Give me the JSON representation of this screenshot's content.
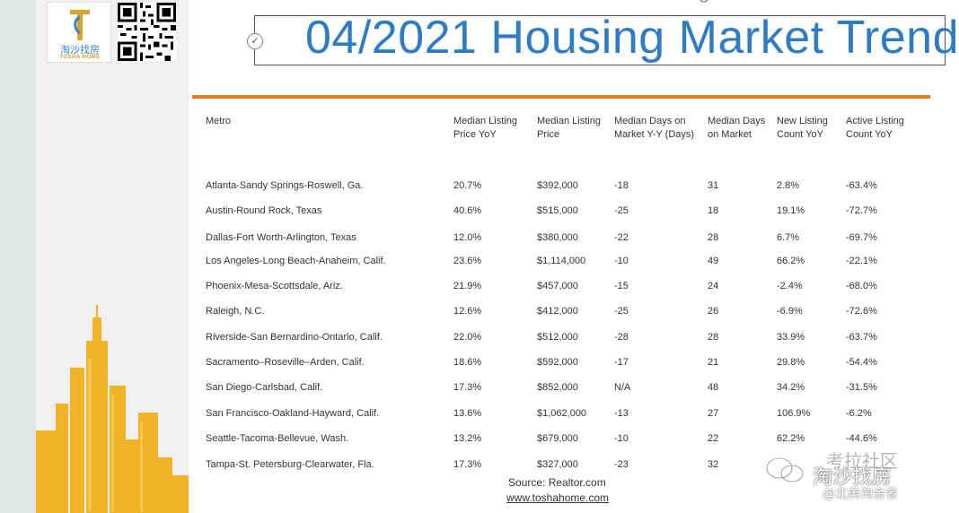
{
  "brand": {
    "logo_cn": "淘沙找房",
    "logo_en": "TOSHA HOME"
  },
  "title": "04/2021 Housing Market Trend",
  "table": {
    "headers": [
      "Metro",
      "Median Listing Price YoY",
      "Median Listing Price",
      "Median Days on Market Y-Y (Days)",
      "Median Days on Market",
      "New Listing Count YoY",
      "Active Listing Count YoY"
    ],
    "rows": [
      [
        "Atlanta-Sandy Springs-Roswell, Ga.",
        "20.7%",
        "$392,000",
        "-18",
        "31",
        "2.8%",
        "-63.4%"
      ],
      [
        "Austin-Round Rock, Texas",
        "40.6%",
        "$515,000",
        "-25",
        "18",
        "19.1%",
        "-72.7%"
      ],
      [
        "Dallas-Fort Worth-Arlington, Texas",
        "12.0%",
        "$380,000",
        "-22",
        "28",
        "6.7%",
        "-69.7%"
      ],
      [
        "Los Angeles-Long Beach-Anaheim, Calif.",
        "23.6%",
        "$1,114,000",
        "-10",
        "49",
        "66.2%",
        "-22.1%"
      ],
      [
        "Phoenix-Mesa-Scottsdale, Ariz.",
        "21.9%",
        "$457,000",
        "-15",
        "24",
        "-2.4%",
        "-68.0%"
      ],
      [
        "Raleigh, N.C.",
        "12.6%",
        "$412,000",
        "-25",
        "26",
        "-6.9%",
        "-72.6%"
      ],
      [
        "Riverside-San Bernardino-Ontario, Calif.",
        "22.0%",
        "$512,000",
        "-28",
        "28",
        "33.9%",
        "-63.7%"
      ],
      [
        "Sacramento–Roseville–Arden, Calif.",
        "18.6%",
        "$592,000",
        "-17",
        "21",
        "29.8%",
        "-54.4%"
      ],
      [
        "San Diego-Carlsbad, Calif.",
        "17.3%",
        "$852,000",
        "N/A",
        "48",
        "34.2%",
        "-31.5%"
      ],
      [
        "San Francisco-Oakland-Hayward, Calif.",
        "13.6%",
        "$1,062,000",
        "-13",
        "27",
        "106.9%",
        "-6.2%"
      ],
      [
        "Seattle-Tacoma-Bellevue, Wash.",
        "13.2%",
        "$679,000",
        "-10",
        "22",
        "62.2%",
        "-44.6%"
      ],
      [
        "Tampa-St. Petersburg-Clearwater, Fla.",
        "17.3%",
        "$327,000",
        "-23",
        "32",
        "",
        ""
      ]
    ]
  },
  "source": "Source: Realtor.com",
  "website": "www.toshahome.com",
  "watermark": {
    "line1": "考拉社区",
    "line2": "淘沙找房",
    "line3": "@北美淘金者"
  },
  "colors": {
    "title": "#2e7cc3",
    "divider": "#e07a2c",
    "skyline": "#f2b225"
  }
}
